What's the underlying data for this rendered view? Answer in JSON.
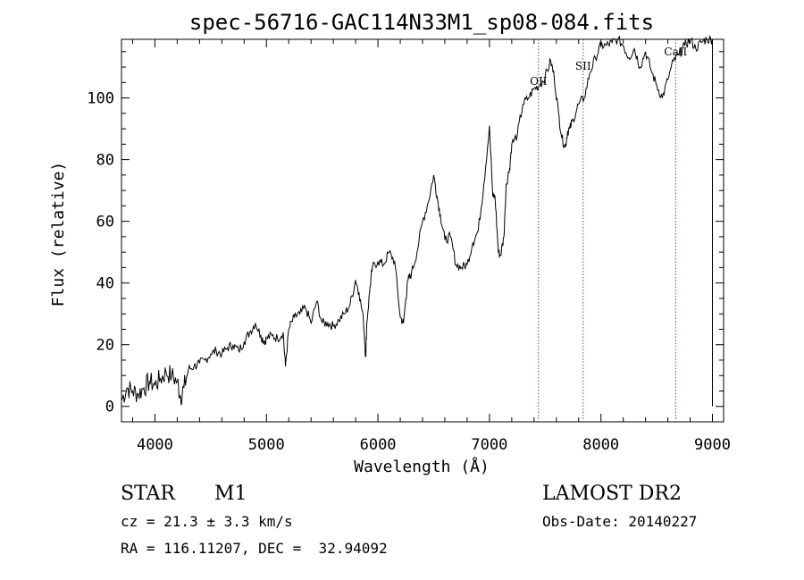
{
  "chart_data": {
    "type": "line",
    "title": "spec-56716-GAC114N33M1_sp08-084.fits",
    "xlabel": "Wavelength (Å)",
    "ylabel": "Flux (relative)",
    "xlim": [
      3700,
      9100
    ],
    "ylim": [
      -5,
      119
    ],
    "xticks": [
      4000,
      5000,
      6000,
      7000,
      8000,
      9000
    ],
    "yticks": [
      0,
      20,
      40,
      60,
      80,
      100
    ],
    "grid": false,
    "series": [
      {
        "x": [
          3700,
          3750,
          3800,
          3850,
          3900,
          3950,
          4000,
          4050,
          4100,
          4150,
          4200,
          4230,
          4260,
          4300,
          4350,
          4400,
          4450,
          4500,
          4550,
          4600,
          4650,
          4700,
          4750,
          4800,
          4850,
          4900,
          4950,
          4980,
          5000,
          5050,
          5100,
          5150,
          5170,
          5200,
          5250,
          5300,
          5350,
          5400,
          5450,
          5500,
          5550,
          5600,
          5650,
          5700,
          5750,
          5800,
          5830,
          5870,
          5890,
          5900,
          5930,
          5950,
          6000,
          6050,
          6100,
          6150,
          6200,
          6230,
          6250,
          6270,
          6300,
          6350,
          6400,
          6450,
          6500,
          6530,
          6560,
          6600,
          6650,
          6700,
          6750,
          6800,
          6850,
          6900,
          6950,
          7000,
          7030,
          7050,
          7080,
          7100,
          7130,
          7150,
          7180,
          7200,
          7250,
          7300,
          7350,
          7400,
          7450,
          7500,
          7550,
          7580,
          7620,
          7650,
          7680,
          7700,
          7720,
          7750,
          7800,
          7850,
          7900,
          7950,
          8000,
          8050,
          8100,
          8150,
          8200,
          8250,
          8300,
          8350,
          8400,
          8450,
          8500,
          8550,
          8600,
          8650,
          8700,
          8750,
          8800,
          8850,
          8900,
          8950,
          9000
        ],
        "values": [
          2,
          6,
          5,
          4,
          6,
          8,
          7,
          9,
          11,
          10,
          8,
          3,
          6,
          12,
          13,
          14,
          15,
          17,
          18,
          17,
          19,
          20,
          18,
          21,
          24,
          27,
          23,
          21,
          22,
          23,
          22,
          24,
          13,
          25,
          29,
          30,
          32,
          27,
          34,
          27,
          27,
          26,
          28,
          30,
          33,
          41,
          37,
          28,
          16,
          27,
          39,
          45,
          47,
          46,
          50,
          47,
          29,
          27,
          35,
          41,
          43,
          50,
          60,
          66,
          75,
          68,
          62,
          54,
          55,
          46,
          45,
          46,
          53,
          57,
          72,
          91,
          68,
          68,
          50,
          49,
          55,
          72,
          77,
          85,
          88,
          98,
          100,
          103,
          104,
          107,
          112,
          107,
          95,
          87,
          84,
          89,
          90,
          93,
          98,
          100,
          108,
          113,
          117,
          117,
          118,
          119,
          117,
          113,
          116,
          110,
          115,
          109,
          104,
          100,
          106,
          112,
          114,
          117,
          119,
          116,
          118,
          119,
          119
        ]
      }
    ],
    "annotations": [
      {
        "label": "OII",
        "x": 7440
      },
      {
        "label": "SII",
        "x": 7840
      },
      {
        "label": "CaII",
        "x": 8670
      }
    ]
  },
  "info": {
    "object_class": "STAR",
    "subclass": "M1",
    "survey": "LAMOST DR2",
    "cz": "cz = 21.3 ± 3.3 km/s",
    "obs_date": "Obs-Date: 20140227",
    "radec": "RA = 116.11207, DEC =  32.94092"
  }
}
